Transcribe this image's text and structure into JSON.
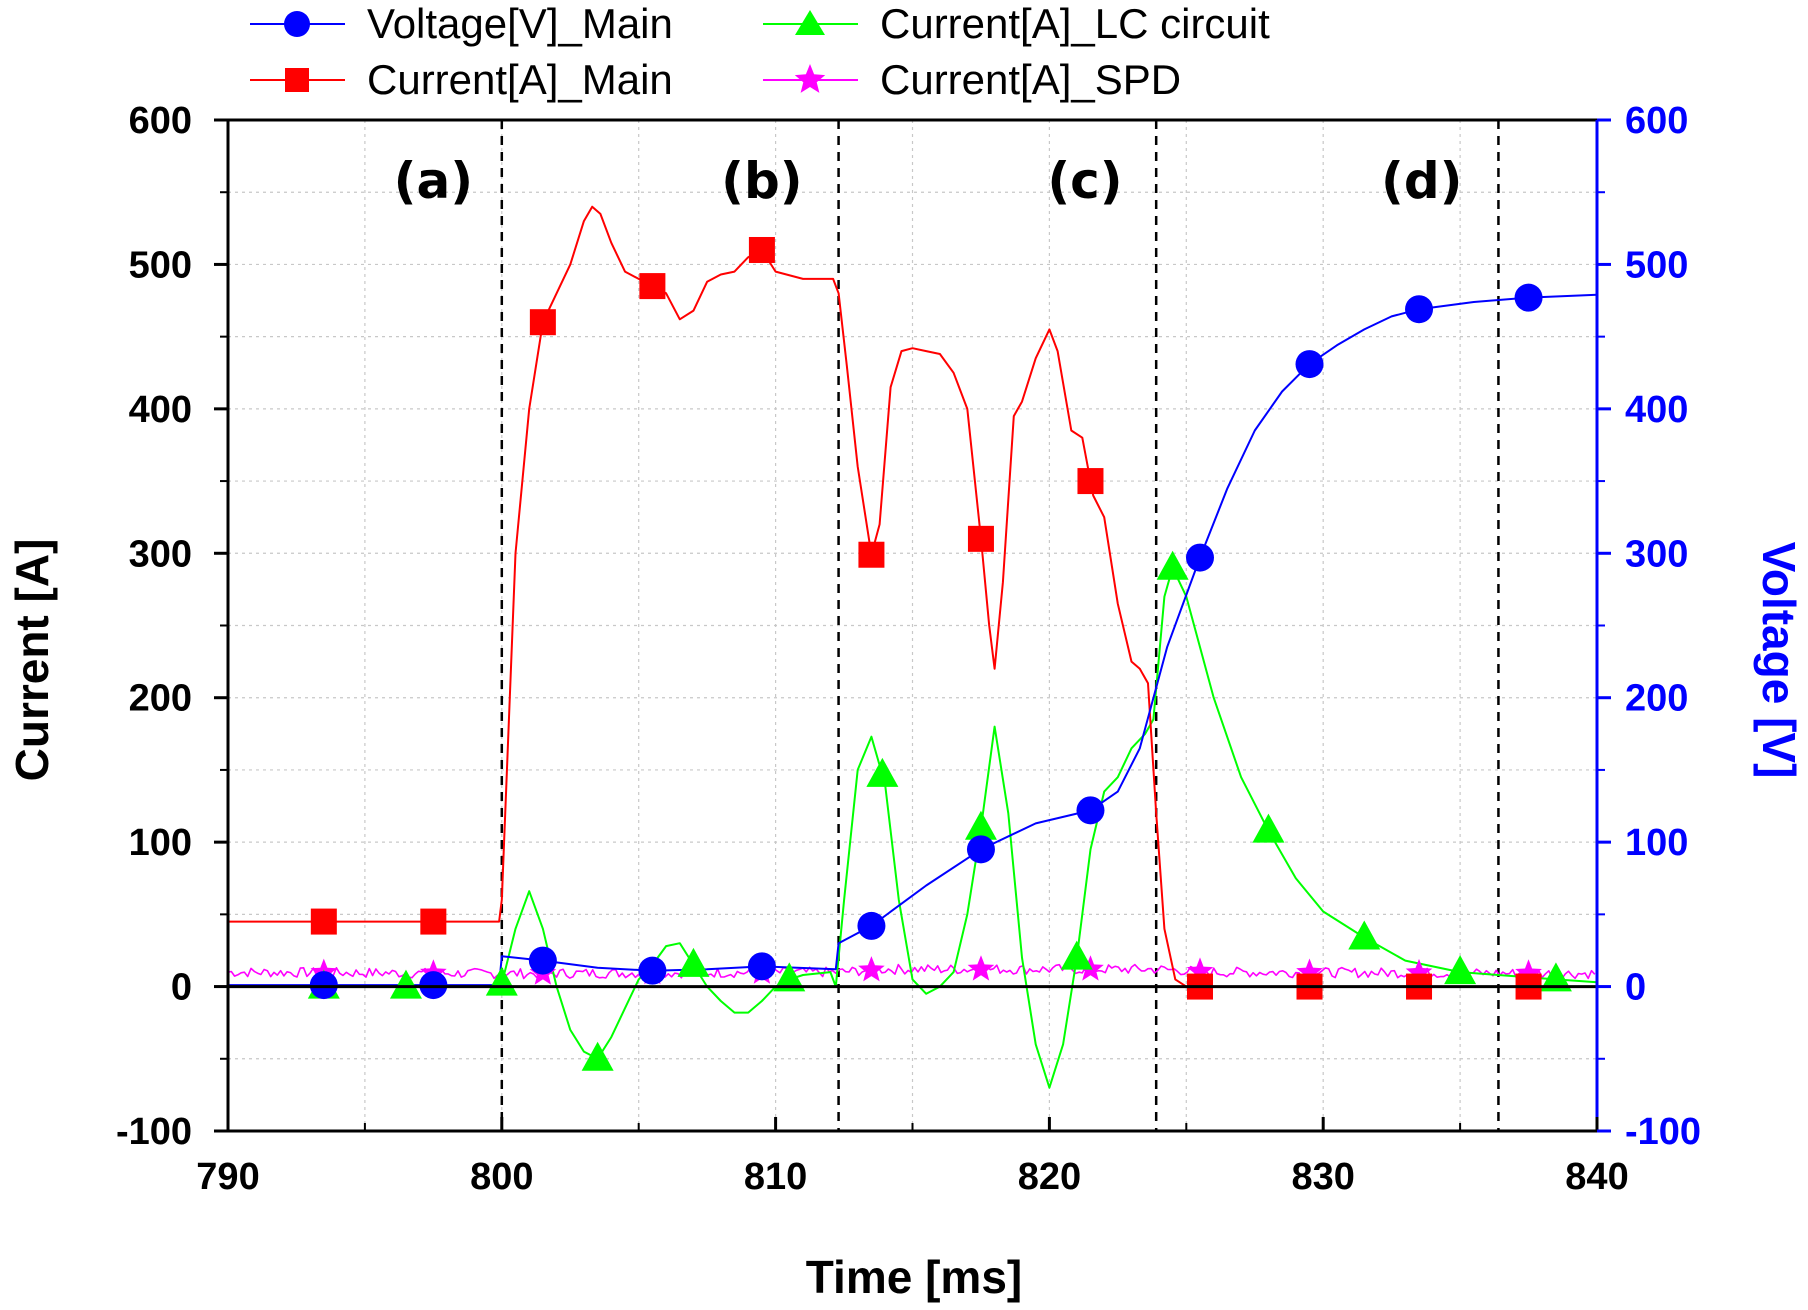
{
  "chart_data": {
    "type": "line",
    "xlabel": "Time [ms]",
    "ylabel_left": "Current [A]",
    "ylabel_right": "Voltage [V]",
    "xlim": [
      790,
      840
    ],
    "ylim_left": [
      -100,
      600
    ],
    "ylim_right": [
      -100,
      600
    ],
    "x_ticks": [
      "790",
      "800",
      "810",
      "820",
      "830",
      "840"
    ],
    "y_ticks_left": [
      "-100",
      "0",
      "100",
      "200",
      "300",
      "400",
      "500",
      "600"
    ],
    "y_ticks_right": [
      "-100",
      "0",
      "100",
      "200",
      "300",
      "400",
      "500",
      "600"
    ],
    "grid": true,
    "legend_position": "top",
    "region_labels": [
      {
        "text": "(a)",
        "x": 797.5
      },
      {
        "text": "(b)",
        "x": 809.5
      },
      {
        "text": "(c)",
        "x": 821.3
      },
      {
        "text": "(d)",
        "x": 833.6
      }
    ],
    "dividers": [
      800,
      812.3,
      823.9,
      836.4
    ],
    "series": [
      {
        "name": "Voltage[V]_Main",
        "axis": "right",
        "color": "#0000ff",
        "marker": "circle",
        "markers_x": [
          793.5,
          797.5,
          801.5,
          805.5,
          809.5,
          813.5,
          817.5,
          821.5,
          825.5,
          829.5,
          833.5,
          837.5
        ],
        "x": [
          790,
          799.9,
          800,
          801.5,
          803.5,
          805.5,
          807.5,
          809.5,
          812.2,
          812.3,
          813.5,
          815.5,
          817.5,
          819.5,
          821.5,
          822.5,
          823.3,
          824.3,
          825.5,
          826.5,
          827.5,
          828.5,
          829.5,
          830.5,
          831.5,
          832.5,
          833.5,
          835.5,
          837.5,
          840
        ],
        "values": [
          1,
          1,
          21,
          18,
          13,
          11,
          12,
          14,
          12,
          30,
          42,
          70,
          95,
          113,
          122,
          135,
          165,
          235,
          297,
          345,
          385,
          412,
          431,
          444,
          455,
          464,
          469,
          474,
          477,
          479
        ]
      },
      {
        "name": "Current[A]_Main",
        "axis": "left",
        "color": "#ff0000",
        "marker": "square",
        "markers_x": [
          793.5,
          797.5,
          801.5,
          805.5,
          809.5,
          813.5,
          817.5,
          821.5,
          825.5,
          829.5,
          833.5,
          837.5
        ],
        "x": [
          790,
          799.9,
          800,
          800.5,
          801,
          801.5,
          802,
          802.5,
          803,
          803.3,
          803.6,
          804,
          804.5,
          805,
          805.5,
          806,
          806.5,
          807,
          807.5,
          808,
          808.5,
          809,
          809.5,
          810,
          811,
          812.1,
          812.3,
          812.6,
          813,
          813.5,
          813.8,
          814.2,
          814.6,
          815,
          815.5,
          816,
          816.5,
          817,
          817.5,
          817.8,
          818,
          818.3,
          818.7,
          819,
          819.5,
          820,
          820.3,
          820.8,
          821.2,
          821.6,
          822,
          822.5,
          823,
          823.3,
          823.6,
          823.9,
          824.2,
          824.6,
          825,
          830,
          835,
          840
        ],
        "values": [
          45,
          45,
          60,
          300,
          400,
          460,
          480,
          500,
          530,
          540,
          535,
          515,
          495,
          490,
          485,
          480,
          462,
          468,
          488,
          493,
          495,
          505,
          510,
          495,
          490,
          490,
          480,
          430,
          360,
          299,
          320,
          415,
          440,
          442,
          440,
          438,
          425,
          400,
          310,
          250,
          220,
          280,
          395,
          405,
          435,
          455,
          440,
          385,
          380,
          340,
          325,
          265,
          225,
          220,
          210,
          120,
          40,
          5,
          0,
          0,
          0,
          0
        ]
      },
      {
        "name": "Current[A]_LC circuit",
        "axis": "left",
        "color": "#00ff00",
        "marker": "triangle",
        "markers_x": [
          793.5,
          796.5,
          800,
          803.5,
          807,
          810.5,
          813.9,
          817.5,
          821,
          824.5,
          828,
          831.5,
          835,
          838.5
        ],
        "x": [
          790,
          799.9,
          800,
          800.5,
          801,
          801.5,
          802,
          802.5,
          803,
          803.5,
          804,
          804.5,
          805,
          805.5,
          806,
          806.5,
          807,
          807.5,
          808,
          808.5,
          809,
          809.5,
          810,
          810.5,
          811,
          812,
          812.2,
          812.5,
          813,
          813.5,
          814,
          814.5,
          815,
          815.5,
          816,
          816.5,
          817,
          817.5,
          818,
          818.5,
          819,
          819.5,
          820,
          820.5,
          821,
          821.5,
          822,
          822.5,
          823,
          823.5,
          823.8,
          824.2,
          824.5,
          825,
          826,
          827,
          828,
          829,
          830,
          831.5,
          833,
          835,
          838.5,
          840
        ],
        "values": [
          0,
          0,
          2,
          40,
          66,
          40,
          0,
          -30,
          -45,
          -50,
          -35,
          -15,
          5,
          15,
          28,
          30,
          15,
          0,
          -10,
          -18,
          -18,
          -10,
          0,
          5,
          8,
          10,
          0,
          60,
          150,
          173,
          140,
          60,
          5,
          -5,
          0,
          10,
          50,
          110,
          180,
          120,
          20,
          -40,
          -70,
          -40,
          20,
          95,
          135,
          145,
          165,
          175,
          185,
          270,
          290,
          270,
          200,
          145,
          108,
          75,
          52,
          34,
          18,
          10,
          5,
          3
        ]
      },
      {
        "name": "Current[A]_SPD",
        "axis": "left",
        "color": "#ff00ff",
        "marker": "star",
        "markers_x": [
          793.5,
          797.5,
          801.5,
          805.5,
          809.5,
          813.5,
          817.5,
          821.5,
          825.5,
          829.5,
          833.5,
          837.5
        ],
        "x": [
          790,
          800,
          812.3,
          814,
          824,
          826,
          840
        ],
        "values": [
          10,
          9,
          10,
          12,
          12,
          10,
          9
        ]
      }
    ]
  },
  "legend": {
    "items": [
      {
        "label": "Voltage[V]_Main"
      },
      {
        "label": "Current[A]_LC circuit"
      },
      {
        "label": "Current[A]_Main"
      },
      {
        "label": "Current[A]_SPD"
      }
    ]
  }
}
